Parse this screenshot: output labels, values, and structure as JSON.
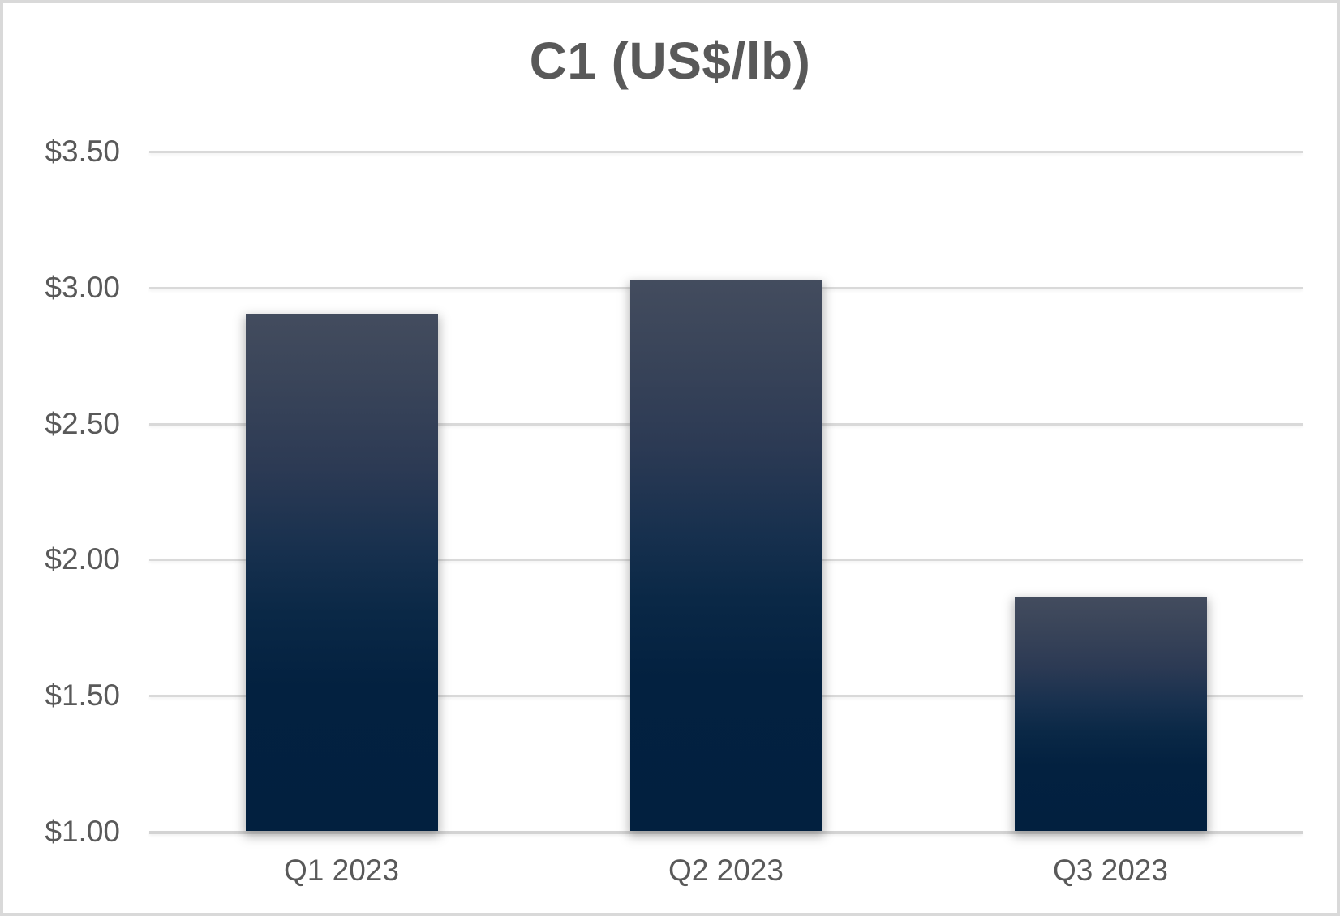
{
  "chart_data": {
    "type": "bar",
    "title": "C1 (US$/lb)",
    "categories": [
      "Q1 2023",
      "Q2 2023",
      "Q3 2023"
    ],
    "values": [
      2.9,
      3.02,
      1.86
    ],
    "value_unit": "US$/lb",
    "ylim": [
      1.0,
      3.5
    ],
    "ytick_step": 0.5,
    "ytick_labels_top_to_bottom": [
      "$3.50",
      "$3.00",
      "$2.50",
      "$2.00",
      "$1.50",
      "$1.00"
    ],
    "xlabel": "",
    "ylabel": "",
    "grid": true,
    "legend_position": "none",
    "colors": {
      "bar_gradient_top": "#434c5e",
      "bar_gradient_bottom": "#02203f",
      "gridline": "#d9d9d9",
      "axis_line": "#d3d3d3",
      "text": "#595959",
      "frame_border": "#d9d9d9",
      "background": "#ffffff"
    }
  }
}
